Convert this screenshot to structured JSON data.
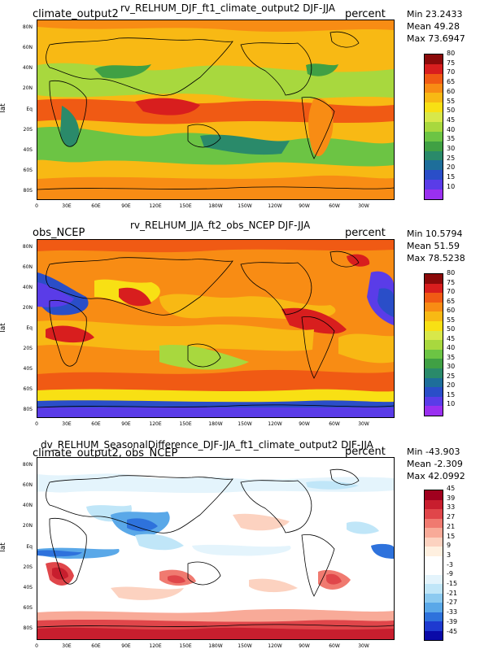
{
  "panels": [
    {
      "center_title": "rv_RELHUM_DJF_ft1_climate_output2  DJF-JJA",
      "left_title": "climate_output2",
      "right_title": "percent",
      "stats": {
        "min": "Min 23.2433",
        "mean": "Mean 49.28",
        "max": "Max 73.6947"
      },
      "ylabel": "lat",
      "colorbar_labels": [
        "80",
        "75",
        "70",
        "65",
        "60",
        "55",
        "50",
        "45",
        "40",
        "35",
        "30",
        "25",
        "20",
        "15",
        "10"
      ],
      "colorbar_colors": [
        "#8b0a0a",
        "#d81e1e",
        "#f05a14",
        "#f88c14",
        "#f8b914",
        "#f8e014",
        "#d8e84a",
        "#a8d83e",
        "#6cc444",
        "#40a044",
        "#2a8a6a",
        "#1e6e9a",
        "#2a4ec8",
        "#5a3ce8",
        "#9a30f0"
      ]
    },
    {
      "center_title": "rv_RELHUM_JJA_ft2_obs_NCEP  DJF-JJA",
      "left_title": "obs_NCEP",
      "right_title": "percent",
      "stats": {
        "min": "Min 10.5794",
        "mean": "Mean 51.59",
        "max": "Max 78.5238"
      },
      "ylabel": "lat",
      "colorbar_labels": [
        "80",
        "75",
        "70",
        "65",
        "60",
        "55",
        "50",
        "45",
        "40",
        "35",
        "30",
        "25",
        "20",
        "15",
        "10"
      ],
      "colorbar_colors": [
        "#8b0a0a",
        "#d81e1e",
        "#f05a14",
        "#f88c14",
        "#f8b914",
        "#f8e014",
        "#d8e84a",
        "#a8d83e",
        "#6cc444",
        "#40a044",
        "#2a8a6a",
        "#1e6e9a",
        "#2a4ec8",
        "#5a3ce8",
        "#9a30f0"
      ]
    },
    {
      "center_title": "dv_RELHUM_SeasonalDifference_DJF-JJA_ft1_climate_output2  DJF-JJA",
      "left_title": "climate_output2, obs_NCEP",
      "right_title": "percent",
      "stats": {
        "min": "Min -43.903",
        "mean": "Mean -2.309",
        "max": "Max 42.0992"
      },
      "ylabel": "lat",
      "colorbar_labels": [
        "45",
        "39",
        "33",
        "27",
        "21",
        "15",
        "9",
        "3",
        "-3",
        "-9",
        "-15",
        "-21",
        "-27",
        "-33",
        "-39",
        "-45"
      ],
      "colorbar_colors": [
        "#a0001e",
        "#c81e2e",
        "#e0464a",
        "#f07a70",
        "#f8aa98",
        "#fcd2c0",
        "#fff0e0",
        "#ffffff",
        "#ffffff",
        "#e4f4fc",
        "#c0e6f8",
        "#8ccaf0",
        "#5aa8e8",
        "#2e72dc",
        "#1e3ad0",
        "#0a0aa8"
      ]
    }
  ],
  "lat_ticks": [
    "80N",
    "60N",
    "40N",
    "20N",
    "Eq",
    "20S",
    "40S",
    "60S",
    "80S"
  ],
  "lon_ticks": [
    "0",
    "30E",
    "60E",
    "90E",
    "120E",
    "150E",
    "180W",
    "150W",
    "120W",
    "90W",
    "60W",
    "30W"
  ]
}
